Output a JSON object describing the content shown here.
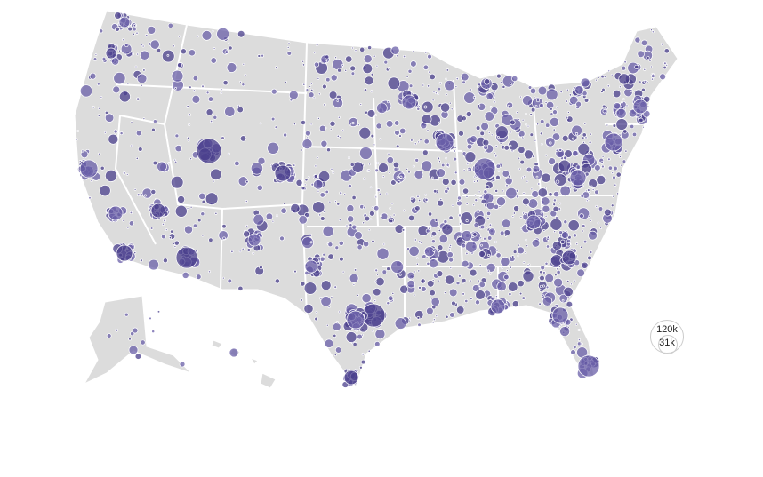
{
  "map": {
    "land_color": "#dcdcdc",
    "border_color": "#ffffff",
    "bubble_color": "#6a5fa8",
    "bubble_dark_color": "#4a3f8c"
  },
  "legend": {
    "large_label": "120k",
    "small_label": "31k"
  }
}
